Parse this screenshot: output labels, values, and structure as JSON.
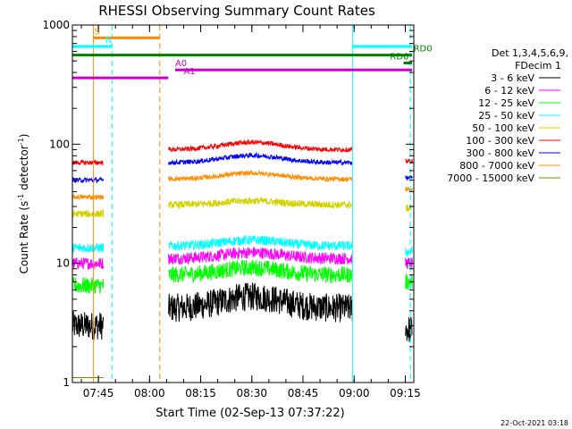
{
  "chart_data": {
    "type": "line",
    "title": "RHESSI Observing Summary Count Rates",
    "xlabel": "Start Time (02-Sep-13 07:37:22)",
    "ylabel_main": "Count Rate (s",
    "ylabel_sup": "-1",
    "ylabel_mid": " detector",
    "ylabel_sup2": "-1",
    "ylabel_end": ")",
    "footer": "22-Oct-2021 03:18",
    "yscale": "log",
    "ylim": [
      1,
      1000
    ],
    "xlim_minutes": [
      457.37,
      557.5
    ],
    "x_ticks": [
      {
        "label": "07:45",
        "min": 465
      },
      {
        "label": "08:00",
        "min": 480
      },
      {
        "label": "08:15",
        "min": 495
      },
      {
        "label": "08:30",
        "min": 510
      },
      {
        "label": "08:45",
        "min": 525
      },
      {
        "label": "09:00",
        "min": 540
      },
      {
        "label": "09:15",
        "min": 555
      }
    ],
    "y_ticks": [
      {
        "label": "1",
        "value": 1
      },
      {
        "label": "10",
        "value": 10
      },
      {
        "label": "100",
        "value": 100
      },
      {
        "label": "1000",
        "value": 1000
      }
    ],
    "legend_header": [
      "Det 1,3,4,5,6,9,",
      "FDecim 1"
    ],
    "legend_position": "right",
    "series": [
      {
        "name": "3 - 6 keV",
        "color": "#000000",
        "pre": 3.0,
        "during": 4.2,
        "post": 2.8,
        "bump": 0.25,
        "noise": 0.12
      },
      {
        "name": "6 - 12 keV",
        "color": "#ff00ff",
        "pre": 10.0,
        "during": 11.0,
        "post": 10.0,
        "bump": 0.12,
        "noise": 0.05
      },
      {
        "name": "12 - 25 keV",
        "color": "#00ff00",
        "pre": 6.5,
        "during": 8.0,
        "post": 7.0,
        "bump": 0.15,
        "noise": 0.07
      },
      {
        "name": "25 - 50 keV",
        "color": "#00ffff",
        "pre": 13.5,
        "during": 14.0,
        "post": 12.5,
        "bump": 0.12,
        "noise": 0.04
      },
      {
        "name": "50 - 100 keV",
        "color": "#d2d200",
        "pre": 26.0,
        "during": 31.0,
        "post": 29.0,
        "bump": 0.08,
        "noise": 0.03
      },
      {
        "name": "100 - 300 keV",
        "color": "#ff0000",
        "pre": 70.0,
        "during": 90.0,
        "post": 72.0,
        "bump": 0.15,
        "noise": 0.02
      },
      {
        "name": "300 - 800 keV",
        "color": "#0000ff",
        "pre": 50.0,
        "during": 70.0,
        "post": 52.0,
        "bump": 0.15,
        "noise": 0.02
      },
      {
        "name": "800 - 7000 keV",
        "color": "#ff8c00",
        "pre": 36.0,
        "during": 51.0,
        "post": 42.0,
        "bump": 0.12,
        "noise": 0.02
      },
      {
        "name": "7000 - 15000 keV",
        "color": "#808000",
        "pre": 1.1,
        "during": 1.0,
        "post": 1.0,
        "bump": 0.0,
        "noise": 0.0
      }
    ],
    "data_gaps_minutes": [
      [
        466.5,
        485.5
      ],
      [
        539.5,
        555.0
      ]
    ],
    "flags": [
      {
        "label": "S",
        "color": "#ff8c00",
        "start": 463.5,
        "end": 483.0,
        "value": 780,
        "label_at": 463.8
      },
      {
        "label": "N",
        "color": "#00ffff",
        "start": 457.37,
        "end": 469.0,
        "value": 660,
        "label_at": 467.0
      },
      {
        "label": "",
        "color": "#00ffff",
        "start": 539.5,
        "end": 557.0,
        "value": 660,
        "label_at": 539.5
      },
      {
        "label": "RD0",
        "color": "#008000",
        "start": 457.37,
        "end": 557.0,
        "value": 560,
        "label_at": 557.4
      },
      {
        "label": "RD6",
        "color": "#008000",
        "start": 554.5,
        "end": 557.0,
        "value": 480,
        "label_at": 550.5
      },
      {
        "label": "A0",
        "color": "#cc00cc",
        "start": 487.5,
        "end": 557.0,
        "value": 420,
        "label_at": 487.5
      },
      {
        "label": "A1",
        "color": "#cc00cc",
        "start": 457.37,
        "end": 485.5,
        "value": 360,
        "label_at": 490.0
      }
    ],
    "vertical_markers": [
      {
        "min": 469.0,
        "color": "#00ffff",
        "style": "dashed"
      },
      {
        "min": 483.0,
        "color": "#ff8c00",
        "style": "dashed"
      },
      {
        "min": 463.5,
        "color": "#ff8c00",
        "style": "solid"
      },
      {
        "min": 539.5,
        "color": "#00ffff",
        "style": "solid"
      },
      {
        "min": 556.5,
        "color": "#00ffff",
        "style": "dashed"
      }
    ]
  }
}
